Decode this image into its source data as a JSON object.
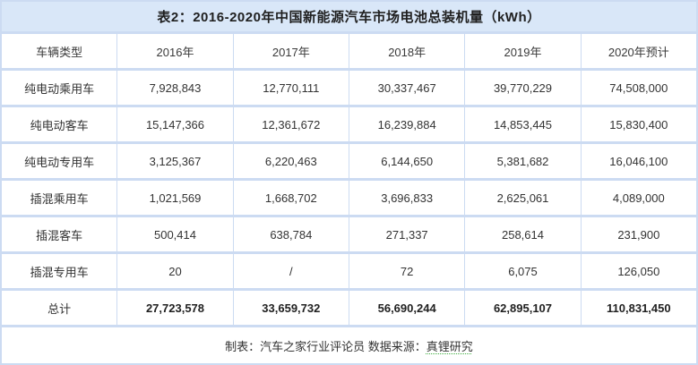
{
  "table": {
    "title": "表2：2016-2020年中国新能源汽车市场电池总装机量（kWh）",
    "columns": [
      "车辆类型",
      "2016年",
      "2017年",
      "2018年",
      "2019年",
      "2020年预计"
    ],
    "rows": [
      {
        "label": "纯电动乘用车",
        "values": [
          "7,928,843",
          "12,770,111",
          "30,337,467",
          "39,770,229",
          "74,508,000"
        ]
      },
      {
        "label": "纯电动客车",
        "values": [
          "15,147,366",
          "12,361,672",
          "16,239,884",
          "14,853,445",
          "15,830,400"
        ]
      },
      {
        "label": "纯电动专用车",
        "values": [
          "3,125,367",
          "6,220,463",
          "6,144,650",
          "5,381,682",
          "16,046,100"
        ]
      },
      {
        "label": "插混乘用车",
        "values": [
          "1,021,569",
          "1,668,702",
          "3,696,833",
          "2,625,061",
          "4,089,000"
        ]
      },
      {
        "label": "插混客车",
        "values": [
          "500,414",
          "638,784",
          "271,337",
          "258,614",
          "231,900"
        ]
      },
      {
        "label": "插混专用车",
        "values": [
          "20",
          "/",
          "72",
          "6,075",
          "126,050"
        ]
      }
    ],
    "total_row": {
      "label": "总计",
      "values": [
        "27,723,578",
        "33,659,732",
        "56,690,244",
        "62,895,107",
        "110,831,450"
      ]
    },
    "footer": {
      "prefix": "制表：汽车之家行业评论员  数据来源：",
      "source": "真锂研究"
    },
    "colors": {
      "title_bg": "#d9e7f8",
      "separator": "#ccdbf2",
      "cell_bg": "#ffffff",
      "text": "#333333",
      "source_underline": "#3fae3f"
    }
  },
  "chart_data": {
    "type": "table",
    "title": "表2：2016-2020年中国新能源汽车市场电池总装机量（kWh）",
    "categories": [
      "2016年",
      "2017年",
      "2018年",
      "2019年",
      "2020年预计"
    ],
    "series": [
      {
        "name": "纯电动乘用车",
        "values": [
          7928843,
          12770111,
          30337467,
          39770229,
          74508000
        ]
      },
      {
        "name": "纯电动客车",
        "values": [
          15147366,
          12361672,
          16239884,
          14853445,
          15830400
        ]
      },
      {
        "name": "纯电动专用车",
        "values": [
          3125367,
          6220463,
          6144650,
          5381682,
          16046100
        ]
      },
      {
        "name": "插混乘用车",
        "values": [
          1021569,
          1668702,
          3696833,
          2625061,
          4089000
        ]
      },
      {
        "name": "插混客车",
        "values": [
          500414,
          638784,
          271337,
          258614,
          231900
        ]
      },
      {
        "name": "插混专用车",
        "values": [
          20,
          null,
          72,
          6075,
          126050
        ]
      },
      {
        "name": "总计",
        "values": [
          27723578,
          33659732,
          56690244,
          62895107,
          110831450
        ]
      }
    ],
    "notes": "插混专用车 2017年 shown as '/'; footer credit: 制表：汽车之家行业评论员 数据来源：真锂研究"
  }
}
